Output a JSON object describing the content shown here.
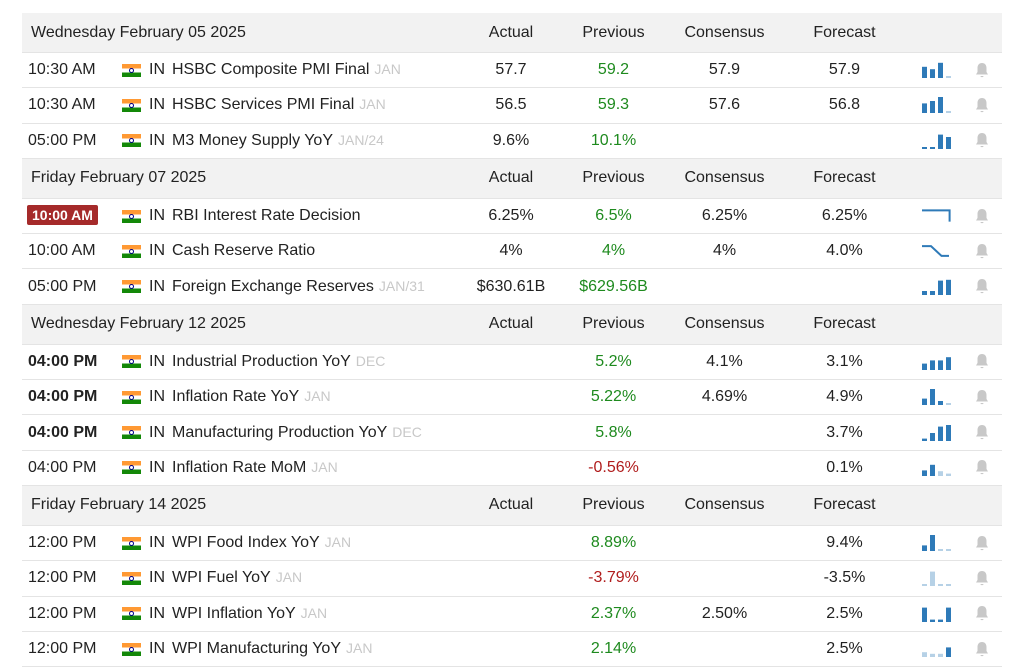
{
  "columns": {
    "actual": "Actual",
    "previous": "Previous",
    "consensus": "Consensus",
    "forecast": "Forecast"
  },
  "colors": {
    "positive": "#1e8a1e",
    "negative": "#b01c1c",
    "badge": "#a52a2a",
    "spark": "#2e7ab8"
  },
  "sections": [
    {
      "date": "Wednesday February 05 2025",
      "rows": [
        {
          "time": "10:30 AM",
          "country": "IN",
          "event": "HSBC Composite PMI Final",
          "ref": "JAN",
          "actual": "57.7",
          "previous": "59.2",
          "consensus": "57.9",
          "forecast": "57.9",
          "prev_color": "pos"
        },
        {
          "time": "10:30 AM",
          "country": "IN",
          "event": "HSBC Services PMI Final",
          "ref": "JAN",
          "actual": "56.5",
          "previous": "59.3",
          "consensus": "57.6",
          "forecast": "56.8",
          "prev_color": "pos"
        },
        {
          "time": "05:00 PM",
          "country": "IN",
          "event": "M3 Money Supply YoY",
          "ref": "JAN/24",
          "actual": "9.6%",
          "previous": "10.1%",
          "consensus": "",
          "forecast": "",
          "prev_color": "pos"
        }
      ]
    },
    {
      "date": "Friday February 07 2025",
      "rows": [
        {
          "time": "10:00 AM",
          "highlight": true,
          "country": "IN",
          "event": "RBI Interest Rate Decision",
          "ref": "",
          "actual": "6.25%",
          "previous": "6.5%",
          "consensus": "6.25%",
          "forecast": "6.25%",
          "prev_color": "pos"
        },
        {
          "time": "10:00 AM",
          "country": "IN",
          "event": "Cash Reserve Ratio",
          "ref": "",
          "actual": "4%",
          "previous": "4%",
          "consensus": "4%",
          "forecast": "4.0%",
          "prev_color": "pos"
        },
        {
          "time": "05:00 PM",
          "country": "IN",
          "event": "Foreign Exchange Reserves",
          "ref": "JAN/31",
          "actual": "$630.61B",
          "previous": "$629.56B",
          "consensus": "",
          "forecast": "",
          "prev_color": "pos"
        }
      ]
    },
    {
      "date": "Wednesday February 12 2025",
      "rows": [
        {
          "time": "04:00 PM",
          "bold": true,
          "country": "IN",
          "event": "Industrial Production YoY",
          "ref": "DEC",
          "actual": "",
          "previous": "5.2%",
          "consensus": "4.1%",
          "forecast": "3.1%",
          "prev_color": "pos"
        },
        {
          "time": "04:00 PM",
          "bold": true,
          "country": "IN",
          "event": "Inflation Rate YoY",
          "ref": "JAN",
          "actual": "",
          "previous": "5.22%",
          "consensus": "4.69%",
          "forecast": "4.9%",
          "prev_color": "pos"
        },
        {
          "time": "04:00 PM",
          "bold": true,
          "country": "IN",
          "event": "Manufacturing Production YoY",
          "ref": "DEC",
          "actual": "",
          "previous": "5.8%",
          "consensus": "",
          "forecast": "3.7%",
          "prev_color": "pos"
        },
        {
          "time": "04:00 PM",
          "country": "IN",
          "event": "Inflation Rate MoM",
          "ref": "JAN",
          "actual": "",
          "previous": "-0.56%",
          "consensus": "",
          "forecast": "0.1%",
          "prev_color": "neg"
        }
      ]
    },
    {
      "date": "Friday February 14 2025",
      "rows": [
        {
          "time": "12:00 PM",
          "country": "IN",
          "event": "WPI Food Index YoY",
          "ref": "JAN",
          "actual": "",
          "previous": "8.89%",
          "consensus": "",
          "forecast": "9.4%",
          "prev_color": "pos"
        },
        {
          "time": "12:00 PM",
          "country": "IN",
          "event": "WPI Fuel YoY",
          "ref": "JAN",
          "actual": "",
          "previous": "-3.79%",
          "consensus": "",
          "forecast": "-3.5%",
          "prev_color": "neg"
        },
        {
          "time": "12:00 PM",
          "country": "IN",
          "event": "WPI Inflation YoY",
          "ref": "JAN",
          "actual": "",
          "previous": "2.37%",
          "consensus": "2.50%",
          "forecast": "2.5%",
          "prev_color": "pos"
        },
        {
          "time": "12:00 PM",
          "country": "IN",
          "event": "WPI Manufacturing YoY",
          "ref": "JAN",
          "actual": "",
          "previous": "2.14%",
          "consensus": "",
          "forecast": "2.5%",
          "prev_color": "pos"
        }
      ]
    }
  ],
  "sparks": [
    {
      "kind": "bars",
      "values": [
        0.7,
        0.55,
        0.95,
        0.1
      ],
      "faded": [
        false,
        false,
        false,
        true
      ]
    },
    {
      "kind": "bars",
      "values": [
        0.6,
        0.75,
        1.0,
        0.1
      ],
      "faded": [
        false,
        false,
        false,
        true
      ]
    },
    {
      "kind": "bars",
      "values": [
        0.1,
        0.1,
        0.9,
        0.75
      ],
      "faded": [
        false,
        false,
        false,
        false
      ]
    },
    {
      "kind": "line",
      "points": [
        [
          0,
          0.1
        ],
        [
          0.92,
          0.1
        ],
        [
          0.92,
          0.9
        ]
      ]
    },
    {
      "kind": "line",
      "points": [
        [
          0,
          0.15
        ],
        [
          0.3,
          0.15
        ],
        [
          0.65,
          0.85
        ],
        [
          0.9,
          0.85
        ]
      ]
    },
    {
      "kind": "bars",
      "values": [
        0.25,
        0.25,
        0.9,
        0.95
      ],
      "faded": [
        false,
        false,
        false,
        false
      ]
    },
    {
      "kind": "bars",
      "values": [
        0.4,
        0.6,
        0.6,
        0.8
      ],
      "faded": [
        false,
        false,
        false,
        false
      ]
    },
    {
      "kind": "bars",
      "values": [
        0.4,
        1.0,
        0.25,
        0.1
      ],
      "faded": [
        false,
        false,
        false,
        true
      ]
    },
    {
      "kind": "bars",
      "values": [
        0.15,
        0.5,
        0.9,
        1.0
      ],
      "faded": [
        false,
        false,
        false,
        false
      ]
    },
    {
      "kind": "bars",
      "values": [
        0.35,
        0.7,
        0.3,
        0.15
      ],
      "faded": [
        false,
        false,
        true,
        true
      ]
    },
    {
      "kind": "bars",
      "values": [
        0.35,
        1.0,
        0.1,
        0.1
      ],
      "faded": [
        false,
        false,
        true,
        true
      ]
    },
    {
      "kind": "bars",
      "values": [
        0.1,
        0.9,
        0.1,
        0.1
      ],
      "faded": [
        true,
        true,
        true,
        true
      ]
    },
    {
      "kind": "bars",
      "values": [
        0.9,
        0.15,
        0.15,
        0.9
      ],
      "faded": [
        false,
        false,
        false,
        false
      ]
    },
    {
      "kind": "bars",
      "values": [
        0.3,
        0.2,
        0.2,
        0.6
      ],
      "faded": [
        true,
        true,
        true,
        false
      ]
    }
  ]
}
